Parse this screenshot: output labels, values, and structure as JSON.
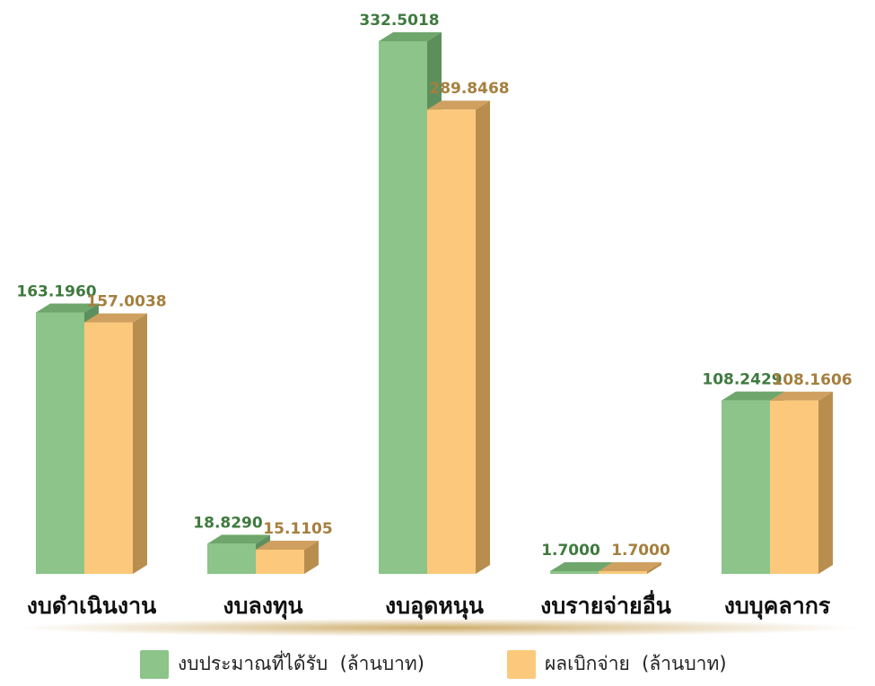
{
  "colors": {
    "budget_front": "#8cc48a",
    "budget_side": "#5d8f5c",
    "budget_top": "#6fa66c",
    "budget_label": "#3f7a3f",
    "spent_front": "#fcc97c",
    "spent_side": "#b88e4f",
    "spent_top": "#cfa060",
    "spent_label": "#a57f3e",
    "baseline_glow": "#c8a35a",
    "category_text": "#111111"
  },
  "chart_data": {
    "type": "bar",
    "categories": [
      "งบดำเนินงาน",
      "งบลงทุน",
      "งบอุดหนุน",
      "งบรายจ่ายอื่น",
      "งบบุคลากร"
    ],
    "series": [
      {
        "name": "งบประมาณที่ได้รับ  (ล้านบาท)",
        "values": [
          163.196,
          18.829,
          332.5018,
          1.7,
          108.2429
        ],
        "labels": [
          "163.1960",
          "18.8290",
          "332.5018",
          "1.7000",
          "108.2429"
        ]
      },
      {
        "name": "ผลเบิกจ่าย  (ล้านบาท)",
        "values": [
          157.0038,
          15.1105,
          289.8468,
          1.7,
          108.1606
        ],
        "labels": [
          "157.0038",
          "15.1105",
          "289.8468",
          "1.7000",
          "108.1606"
        ]
      }
    ],
    "legend_position": "bottom",
    "grid": false,
    "ylim": [
      0,
      340
    ]
  }
}
